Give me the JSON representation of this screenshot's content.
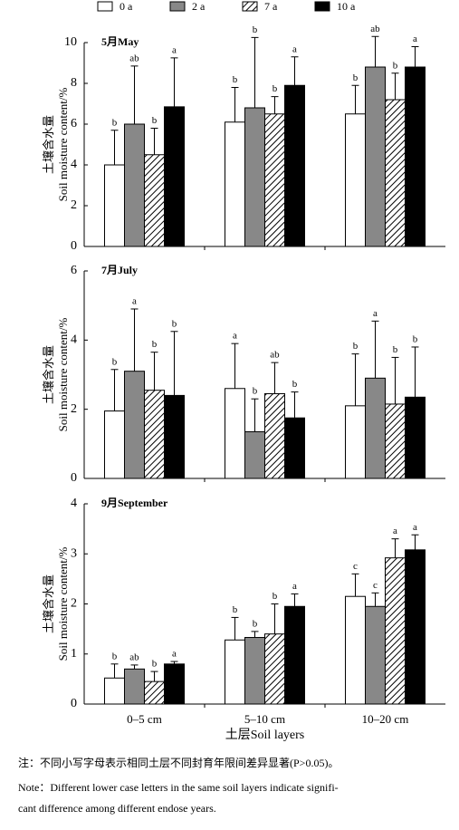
{
  "chart_data": [
    {
      "type": "bar",
      "title": "5月May",
      "ylabel": [
        "土壤含水量",
        "Soil moisture content/%"
      ],
      "categories": [
        null,
        null,
        null
      ],
      "ylim": [
        0,
        10
      ],
      "yticks": [
        0,
        2,
        4,
        6,
        8,
        10
      ],
      "series": [
        {
          "name": "0 a",
          "color": "#ffffff",
          "values": [
            4.0,
            6.1,
            6.5
          ],
          "errors": [
            1.7,
            1.7,
            1.4
          ],
          "letters": [
            "b",
            "b",
            "b"
          ]
        },
        {
          "name": "2 a",
          "color": "#888888",
          "values": [
            6.0,
            6.8,
            8.8
          ],
          "errors": [
            2.85,
            3.45,
            1.5
          ],
          "letters": [
            "ab",
            "b",
            "ab"
          ]
        },
        {
          "name": "7 a",
          "color": "#ffffff",
          "hatch": true,
          "values": [
            4.5,
            6.5,
            7.2
          ],
          "errors": [
            1.3,
            0.85,
            1.3
          ],
          "letters": [
            "b",
            "b",
            "b"
          ]
        },
        {
          "name": "10 a",
          "color": "#000000",
          "values": [
            6.85,
            7.9,
            8.8
          ],
          "errors": [
            2.4,
            1.4,
            1.0
          ],
          "letters": [
            "a",
            "a",
            "a"
          ]
        }
      ]
    },
    {
      "type": "bar",
      "title": "7月July",
      "ylabel": [
        "土壤含水量",
        "Soil moisture content/%"
      ],
      "categories": [
        null,
        null,
        null
      ],
      "ylim": [
        0,
        6
      ],
      "yticks": [
        0,
        2,
        4,
        6
      ],
      "series": [
        {
          "color": "#ffffff",
          "values": [
            1.95,
            2.6,
            2.1
          ],
          "errors": [
            1.2,
            1.3,
            1.5
          ],
          "letters": [
            "b",
            "a",
            "b"
          ]
        },
        {
          "color": "#888888",
          "values": [
            3.1,
            1.35,
            2.9
          ],
          "errors": [
            1.8,
            0.95,
            1.65
          ],
          "letters": [
            "a",
            "b",
            "a"
          ]
        },
        {
          "color": "#ffffff",
          "hatch": true,
          "values": [
            2.55,
            2.45,
            2.15
          ],
          "errors": [
            1.1,
            0.9,
            1.35
          ],
          "letters": [
            "b",
            "ab",
            "b"
          ]
        },
        {
          "color": "#000000",
          "values": [
            2.4,
            1.75,
            2.35
          ],
          "errors": [
            1.85,
            0.75,
            1.45
          ],
          "letters": [
            "b",
            "b",
            "b"
          ]
        }
      ]
    },
    {
      "type": "bar",
      "title": "9月September",
      "ylabel": [
        "土壤含水量",
        "Soil moisture content/%"
      ],
      "xlabel": "土层Soil layers",
      "categories": [
        "0–5 cm",
        "5–10 cm",
        "10–20 cm"
      ],
      "ylim": [
        0,
        4
      ],
      "yticks": [
        0,
        1,
        2,
        3,
        4
      ],
      "series": [
        {
          "color": "#ffffff",
          "values": [
            0.52,
            1.28,
            2.15
          ],
          "errors": [
            0.28,
            0.45,
            0.45
          ],
          "letters": [
            "b",
            "b",
            "c"
          ]
        },
        {
          "color": "#888888",
          "values": [
            0.7,
            1.33,
            1.95
          ],
          "errors": [
            0.08,
            0.12,
            0.27
          ],
          "letters": [
            "ab",
            "b",
            "c"
          ]
        },
        {
          "color": "#ffffff",
          "hatch": true,
          "values": [
            0.45,
            1.4,
            2.92
          ],
          "errors": [
            0.2,
            0.6,
            0.38
          ],
          "letters": [
            "b",
            "b",
            "a"
          ]
        },
        {
          "color": "#000000",
          "values": [
            0.8,
            1.95,
            3.08
          ],
          "errors": [
            0.05,
            0.25,
            0.3
          ],
          "letters": [
            "a",
            "a",
            "a"
          ]
        }
      ]
    }
  ],
  "notes": [
    "注：不同小写字母表示相同土层不同封育年限间差异显著(P>0.05)。",
    "Note：Different lower case letters in the same soil layers indicate signifi-",
    "cant difference among different endose years."
  ]
}
